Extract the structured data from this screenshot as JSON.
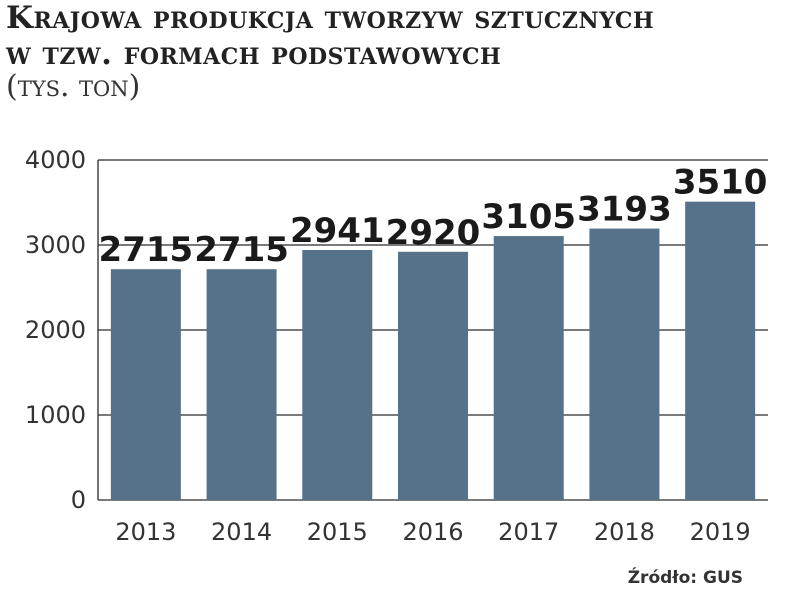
{
  "title_line1": "Krajowa produkcja tworzyw sztucznych",
  "title_line2": "w tzw. formach podstawowych",
  "subtitle": "(tys. ton)",
  "source": "Źródło: GUS",
  "colors": {
    "bar": "#56718a",
    "grid": "#2a2a2a",
    "axis": "#2a2a2a"
  },
  "chart_data": {
    "type": "bar",
    "categories": [
      "2013",
      "2014",
      "2015",
      "2016",
      "2017",
      "2018",
      "2019"
    ],
    "values": [
      2715,
      2715,
      2941,
      2920,
      3105,
      3193,
      3510
    ],
    "data_labels": [
      "2715",
      "2715",
      "2941",
      "2920",
      "3105",
      "3193",
      "3510"
    ],
    "y_ticks": [
      "0",
      "1000",
      "2000",
      "3000",
      "4000"
    ],
    "y_tick_values": [
      0,
      1000,
      2000,
      3000,
      4000
    ],
    "ylim": [
      0,
      4000
    ],
    "grid": true,
    "legend": "none"
  }
}
